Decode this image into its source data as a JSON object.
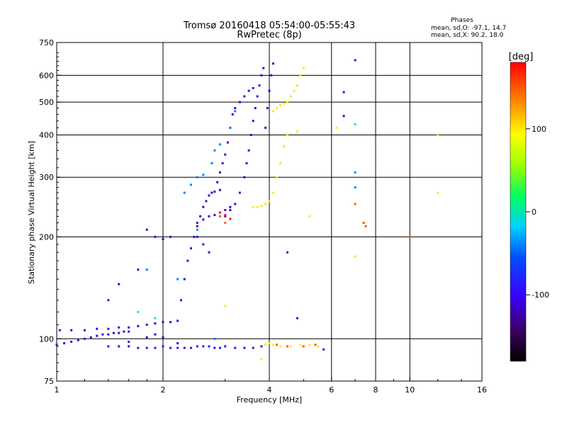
{
  "chart_data": {
    "type": "scatter",
    "title": "Tromsø 20160418 05:54:00-05:55:43",
    "subtitle": "RwPretec (8p)",
    "phase_box": {
      "heading": "Phases",
      "line_o": "mean, sd,O: -97.1, 14.7",
      "line_x": "mean, sd,X:  90.2, 18.0"
    },
    "xlabel": "Frequency [MHz]",
    "ylabel": "Stationary phase Virtual Height [km]",
    "x_scale": "log",
    "y_scale": "log",
    "xlim": [
      1,
      16
    ],
    "ylim": [
      75,
      750
    ],
    "x_ticks": [
      {
        "v": 1,
        "label": "1"
      },
      {
        "v": 2,
        "label": "2"
      },
      {
        "v": 4,
        "label": "4"
      },
      {
        "v": 6,
        "label": "6"
      },
      {
        "v": 8,
        "label": "8"
      },
      {
        "v": 10,
        "label": "10"
      },
      {
        "v": 16,
        "label": "16"
      }
    ],
    "y_ticks": [
      {
        "v": 75,
        "label": "75"
      },
      {
        "v": 100,
        "label": "100"
      },
      {
        "v": 200,
        "label": "200"
      },
      {
        "v": 300,
        "label": "300"
      },
      {
        "v": 400,
        "label": "400"
      },
      {
        "v": 500,
        "label": "500"
      },
      {
        "v": 600,
        "label": "600"
      },
      {
        "v": 750,
        "label": "750"
      }
    ],
    "x_grid": [
      2,
      4,
      6,
      8,
      10
    ],
    "y_grid": [
      100,
      200,
      300,
      400,
      500,
      600
    ],
    "grid": true,
    "colorbar": {
      "label": "[deg]",
      "range": [
        -180,
        180
      ],
      "ticks": [
        {
          "v": 100,
          "label": "100"
        },
        {
          "v": 0,
          "label": "0"
        },
        {
          "v": -100,
          "label": "-100"
        }
      ]
    },
    "series": [
      {
        "points": [
          [
            1.0,
            96
          ],
          [
            1.05,
            97
          ],
          [
            1.1,
            98
          ],
          [
            1.15,
            99
          ],
          [
            1.2,
            100
          ],
          [
            1.25,
            101
          ],
          [
            1.3,
            102
          ],
          [
            1.35,
            103
          ],
          [
            1.4,
            103
          ],
          [
            1.45,
            104
          ],
          [
            1.5,
            104
          ],
          [
            1.55,
            105
          ],
          [
            1.6,
            105
          ],
          [
            1.02,
            106
          ],
          [
            1.1,
            106
          ],
          [
            1.2,
            106
          ],
          [
            1.3,
            107
          ],
          [
            1.4,
            107
          ],
          [
            1.5,
            108
          ],
          [
            1.6,
            108
          ],
          [
            1.7,
            109
          ],
          [
            1.8,
            110
          ],
          [
            1.9,
            111
          ],
          [
            2.0,
            112
          ],
          [
            2.1,
            112
          ],
          [
            2.2,
            113
          ],
          [
            2.25,
            130
          ],
          [
            2.3,
            150
          ],
          [
            2.35,
            170
          ],
          [
            2.4,
            185
          ],
          [
            2.45,
            200
          ],
          [
            2.5,
            215
          ],
          [
            2.55,
            230
          ],
          [
            2.6,
            245
          ],
          [
            2.65,
            255
          ],
          [
            2.7,
            265
          ],
          [
            2.75,
            270
          ],
          [
            2.8,
            272
          ],
          [
            2.9,
            275
          ],
          [
            2.5,
            220
          ],
          [
            2.6,
            225
          ],
          [
            2.7,
            230
          ],
          [
            2.8,
            232
          ],
          [
            2.9,
            236
          ],
          [
            3.0,
            240
          ],
          [
            3.1,
            245
          ],
          [
            2.85,
            290
          ],
          [
            2.9,
            310
          ],
          [
            2.95,
            330
          ],
          [
            3.0,
            350
          ],
          [
            3.05,
            380
          ],
          [
            3.1,
            420
          ],
          [
            3.15,
            460
          ],
          [
            3.2,
            480
          ],
          [
            3.0,
            230
          ],
          [
            3.1,
            240
          ],
          [
            3.2,
            250
          ],
          [
            3.3,
            270
          ],
          [
            3.4,
            300
          ],
          [
            3.45,
            330
          ],
          [
            3.5,
            360
          ],
          [
            3.55,
            400
          ],
          [
            3.6,
            440
          ],
          [
            3.65,
            480
          ],
          [
            3.7,
            520
          ],
          [
            3.75,
            560
          ],
          [
            3.8,
            600
          ],
          [
            3.85,
            630
          ],
          [
            3.3,
            500
          ],
          [
            3.4,
            520
          ],
          [
            3.5,
            540
          ],
          [
            3.6,
            550
          ],
          [
            3.9,
            420
          ],
          [
            3.95,
            480
          ],
          [
            4.0,
            540
          ],
          [
            4.05,
            600
          ],
          [
            4.1,
            650
          ],
          [
            1.6,
            98
          ],
          [
            1.8,
            101
          ],
          [
            1.9,
            103
          ],
          [
            2.0,
            101
          ],
          [
            2.2,
            97
          ],
          [
            1.4,
            130
          ],
          [
            1.5,
            145
          ],
          [
            1.7,
            160
          ],
          [
            1.8,
            210
          ],
          [
            1.9,
            200
          ],
          [
            2.0,
            197
          ],
          [
            2.1,
            200
          ],
          [
            2.5,
            200
          ],
          [
            2.6,
            190
          ],
          [
            2.7,
            180
          ],
          [
            4.5,
            180
          ],
          [
            4.8,
            115
          ],
          [
            5.7,
            93
          ],
          [
            6.5,
            535
          ],
          [
            6.5,
            455
          ],
          [
            7.0,
            665
          ]
        ],
        "phase": -110
      },
      {
        "points": [
          [
            1.4,
            95
          ],
          [
            1.5,
            95
          ],
          [
            1.6,
            95
          ],
          [
            1.7,
            94
          ],
          [
            1.8,
            94
          ],
          [
            1.9,
            94
          ],
          [
            2.0,
            95
          ],
          [
            2.1,
            94
          ],
          [
            2.2,
            94
          ],
          [
            2.3,
            94
          ],
          [
            2.4,
            94
          ],
          [
            2.5,
            95
          ],
          [
            2.6,
            95
          ],
          [
            2.7,
            95
          ],
          [
            2.8,
            94
          ],
          [
            2.9,
            94
          ],
          [
            3.0,
            95
          ],
          [
            3.2,
            94
          ],
          [
            3.4,
            94
          ],
          [
            3.6,
            94
          ],
          [
            3.8,
            95
          ]
        ],
        "phase": -90
      },
      {
        "points": [
          [
            2.3,
            270
          ],
          [
            2.4,
            285
          ],
          [
            2.5,
            300
          ],
          [
            2.6,
            305
          ],
          [
            2.75,
            330
          ],
          [
            2.8,
            360
          ],
          [
            2.9,
            375
          ],
          [
            3.1,
            420
          ],
          [
            3.2,
            470
          ],
          [
            2.8,
            100
          ],
          [
            2.2,
            150
          ],
          [
            1.8,
            160
          ],
          [
            2.5,
            210
          ],
          [
            7.0,
            310
          ],
          [
            7.0,
            280
          ]
        ],
        "phase": -40
      },
      {
        "points": [
          [
            1.7,
            120
          ],
          [
            1.9,
            115
          ],
          [
            7.0,
            430
          ]
        ],
        "phase": 20
      },
      {
        "points": [
          [
            3.6,
            245
          ],
          [
            3.7,
            245
          ],
          [
            3.8,
            247
          ],
          [
            3.9,
            250
          ],
          [
            4.0,
            255
          ],
          [
            4.1,
            270
          ],
          [
            4.2,
            300
          ],
          [
            4.3,
            330
          ],
          [
            4.4,
            370
          ],
          [
            4.5,
            400
          ],
          [
            4.1,
            470
          ],
          [
            4.2,
            480
          ],
          [
            4.3,
            490
          ],
          [
            4.4,
            495
          ],
          [
            4.5,
            500
          ],
          [
            4.6,
            520
          ],
          [
            4.7,
            540
          ],
          [
            4.8,
            560
          ],
          [
            4.9,
            600
          ],
          [
            5.0,
            630
          ],
          [
            3.9,
            96
          ],
          [
            4.0,
            97
          ],
          [
            4.1,
            96
          ],
          [
            4.3,
            95
          ],
          [
            4.6,
            95
          ],
          [
            4.9,
            96
          ],
          [
            5.2,
            96
          ],
          [
            5.5,
            95
          ],
          [
            5.2,
            230
          ],
          [
            4.8,
            410
          ],
          [
            3.0,
            125
          ],
          [
            3.8,
            87
          ],
          [
            6.2,
            420
          ],
          [
            12.0,
            400
          ],
          [
            12.0,
            270
          ],
          [
            7.0,
            175
          ]
        ],
        "phase": 100
      },
      {
        "points": [
          [
            4.2,
            96
          ],
          [
            4.5,
            95
          ],
          [
            5.0,
            95
          ],
          [
            5.4,
            96
          ],
          [
            7.0,
            250
          ],
          [
            7.5,
            215
          ],
          [
            7.4,
            220
          ],
          [
            10.0,
            200
          ],
          [
            2.9,
            230
          ],
          [
            3.0,
            220
          ]
        ],
        "phase": 150
      },
      {
        "points": [
          [
            3.0,
            232
          ],
          [
            3.1,
            226
          ],
          [
            2.9,
            236
          ]
        ],
        "phase": 175
      }
    ]
  }
}
